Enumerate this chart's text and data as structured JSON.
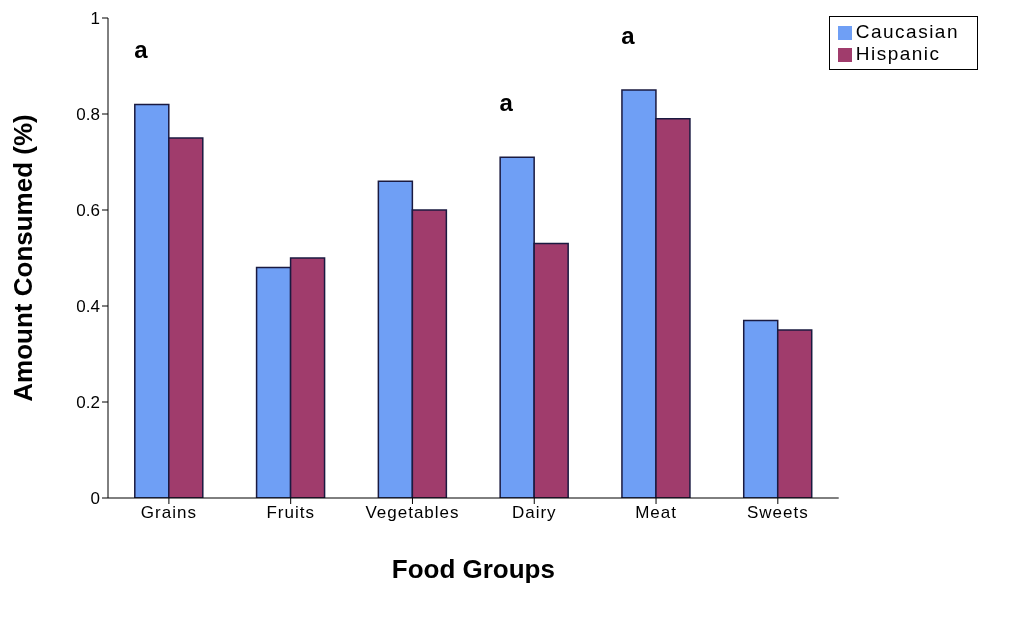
{
  "chart_data": {
    "type": "bar",
    "xlabel": "Food Groups",
    "ylabel": "Amount Consumed (%)",
    "categories": [
      "Grains",
      "Fruits",
      "Vegetables",
      "Dairy",
      "Meat",
      "Sweets"
    ],
    "series": [
      {
        "name": "Caucasian",
        "color": "#6f9ff5",
        "values": [
          0.82,
          0.48,
          0.66,
          0.71,
          0.85,
          0.37
        ]
      },
      {
        "name": "Hispanic",
        "color": "#a03c6c",
        "values": [
          0.75,
          0.5,
          0.6,
          0.53,
          0.79,
          0.35
        ]
      }
    ],
    "ylim": [
      0,
      1
    ],
    "yticks": [
      0,
      0.2,
      0.4,
      0.6,
      0.8,
      1
    ],
    "grid": false,
    "legend": "top right",
    "annotations": [
      {
        "text": "a",
        "x": "Grains",
        "y": 0.82
      },
      {
        "text": "a",
        "x": "Dairy",
        "y": 0.71
      },
      {
        "text": "a",
        "x": "Meat",
        "y": 0.85
      }
    ]
  }
}
